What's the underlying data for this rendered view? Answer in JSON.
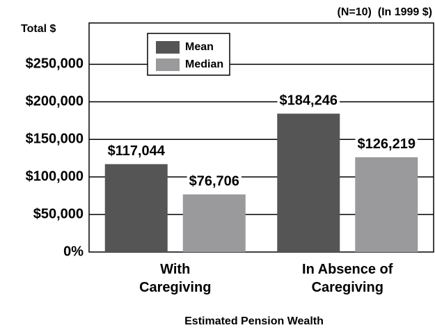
{
  "chart_data": {
    "type": "bar",
    "y_label": "Total $",
    "note": "(N=10)  (In 1999 $)",
    "x_label": "Estimated Pension Wealth",
    "categories": [
      "With Caregiving",
      "In Absence of Caregiving"
    ],
    "series": [
      {
        "name": "Mean",
        "color": "#555555",
        "values": [
          117044,
          184246
        ],
        "value_labels": [
          "$117,044",
          "$184,246"
        ]
      },
      {
        "name": "Median",
        "color": "#9a9a9c",
        "values": [
          76706,
          126219
        ],
        "value_labels": [
          "$76,706",
          "$126,219"
        ]
      }
    ],
    "ylim": [
      0,
      305000
    ],
    "yticks": [
      {
        "value": 0,
        "label": "0%"
      },
      {
        "value": 50000,
        "label": "$50,000"
      },
      {
        "value": 100000,
        "label": "$100,000"
      },
      {
        "value": 150000,
        "label": "$150,000"
      },
      {
        "value": 200000,
        "label": "$200,000"
      },
      {
        "value": 250000,
        "label": "$250,000"
      }
    ],
    "grid": true
  }
}
